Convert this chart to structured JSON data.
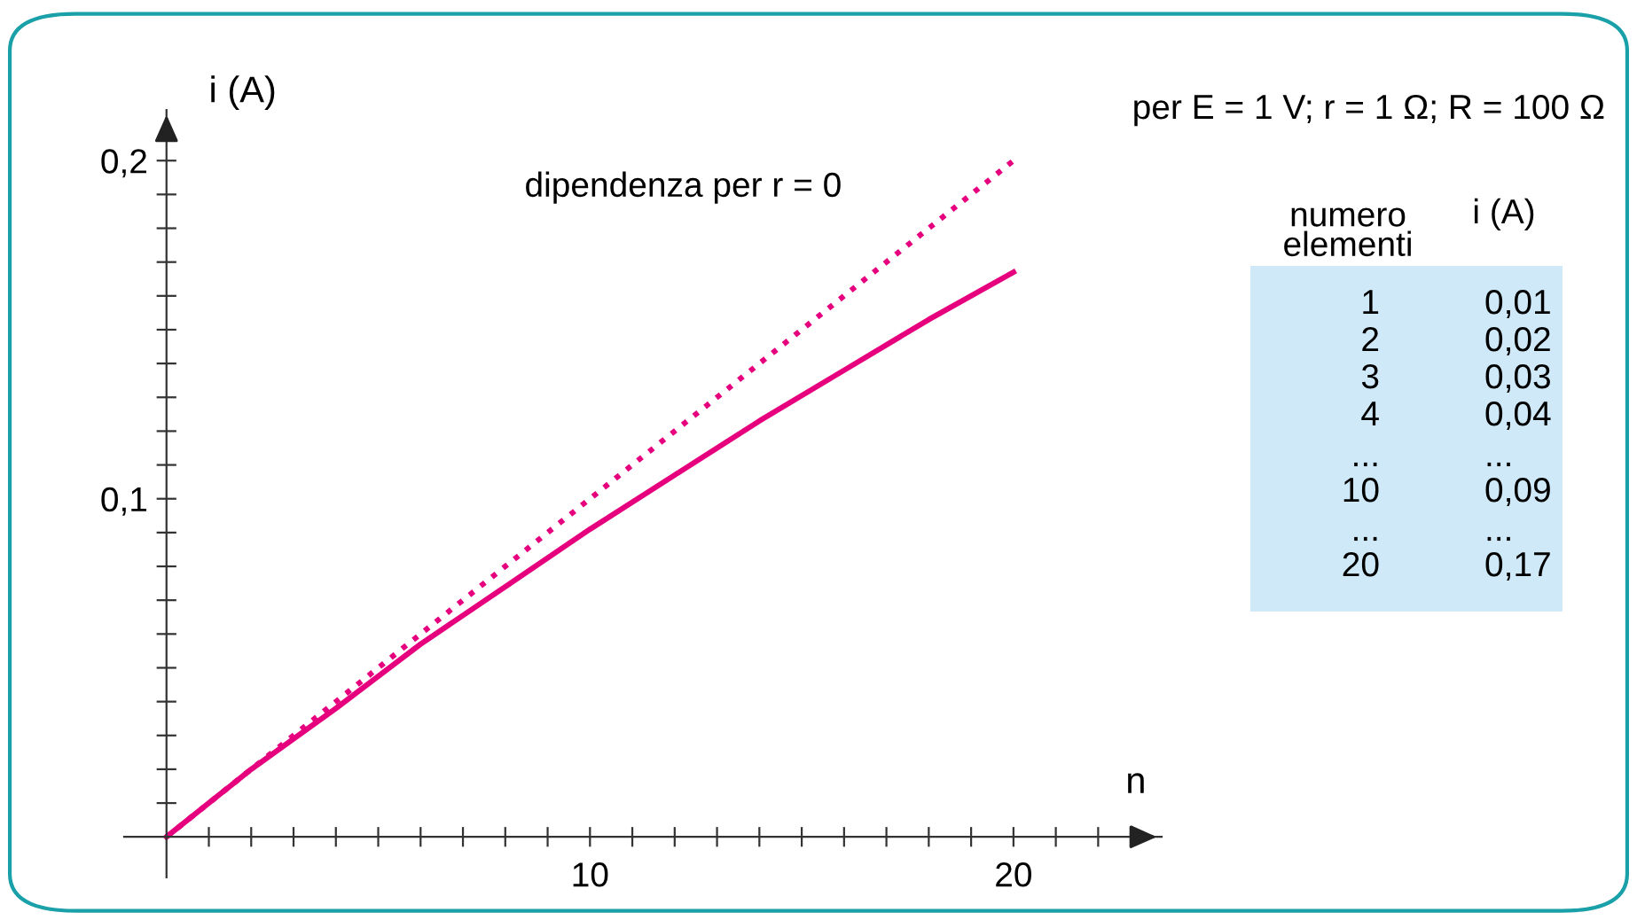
{
  "chart_data": {
    "type": "line",
    "xlabel": "n",
    "ylabel": "i (A)",
    "xlim": [
      -1,
      23.5
    ],
    "ylim": [
      -0.012,
      0.215
    ],
    "xticks": [
      {
        "value": 1,
        "label": null
      },
      {
        "value": 2,
        "label": null
      },
      {
        "value": 3,
        "label": null
      },
      {
        "value": 4,
        "label": null
      },
      {
        "value": 5,
        "label": null
      },
      {
        "value": 6,
        "label": null
      },
      {
        "value": 7,
        "label": null
      },
      {
        "value": 8,
        "label": null
      },
      {
        "value": 9,
        "label": null
      },
      10,
      {
        "value": 11,
        "label": null
      },
      {
        "value": 12,
        "label": null
      },
      {
        "value": 13,
        "label": null
      },
      {
        "value": 14,
        "label": null
      },
      {
        "value": 15,
        "label": null
      },
      {
        "value": 16,
        "label": null
      },
      {
        "value": 17,
        "label": null
      },
      {
        "value": 18,
        "label": null
      },
      {
        "value": 19,
        "label": null
      },
      20,
      {
        "value": 21,
        "label": null
      },
      {
        "value": 22,
        "label": null
      }
    ],
    "yticks": [
      {
        "value": 0.01,
        "label": null
      },
      {
        "value": 0.02,
        "label": null
      },
      {
        "value": 0.03,
        "label": null
      },
      {
        "value": 0.04,
        "label": null
      },
      {
        "value": 0.05,
        "label": null
      },
      {
        "value": 0.06,
        "label": null
      },
      {
        "value": 0.07,
        "label": null
      },
      {
        "value": 0.08,
        "label": null
      },
      {
        "value": 0.09,
        "label": null
      },
      {
        "value": 0.1,
        "label": "0,1"
      },
      {
        "value": 0.11,
        "label": null
      },
      {
        "value": 0.12,
        "label": null
      },
      {
        "value": 0.13,
        "label": null
      },
      {
        "value": 0.14,
        "label": null
      },
      {
        "value": 0.15,
        "label": null
      },
      {
        "value": 0.16,
        "label": null
      },
      {
        "value": 0.17,
        "label": null
      },
      {
        "value": 0.18,
        "label": null
      },
      {
        "value": 0.19,
        "label": null
      },
      {
        "value": 0.2,
        "label": "0,2"
      }
    ],
    "grid": false,
    "legend": false,
    "marker": "none",
    "series": [
      {
        "color": "#e6007e",
        "line_style": "solid",
        "x": [
          0,
          2,
          4,
          6,
          8,
          10,
          12,
          14,
          16,
          18,
          20
        ],
        "values": [
          0,
          0.02,
          0.038,
          0.057,
          0.074,
          0.091,
          0.107,
          0.123,
          0.138,
          0.153,
          0.167
        ]
      },
      {
        "name": "dipendenza per r = 0",
        "color": "#e6007e",
        "line_style": "dotted",
        "x": [
          0,
          20
        ],
        "values": [
          0,
          0.2
        ]
      }
    ],
    "annotations": [
      "per E = 1 V; r = 1 Ω; R = 100 Ω",
      "numero\nelementi",
      "i (A)",
      "1",
      "0,01",
      "2",
      "0,02",
      "3",
      "0,03",
      "4",
      "0,04",
      "...",
      "...",
      "10",
      "0,09",
      "...",
      "...",
      "20",
      "0,17"
    ]
  }
}
